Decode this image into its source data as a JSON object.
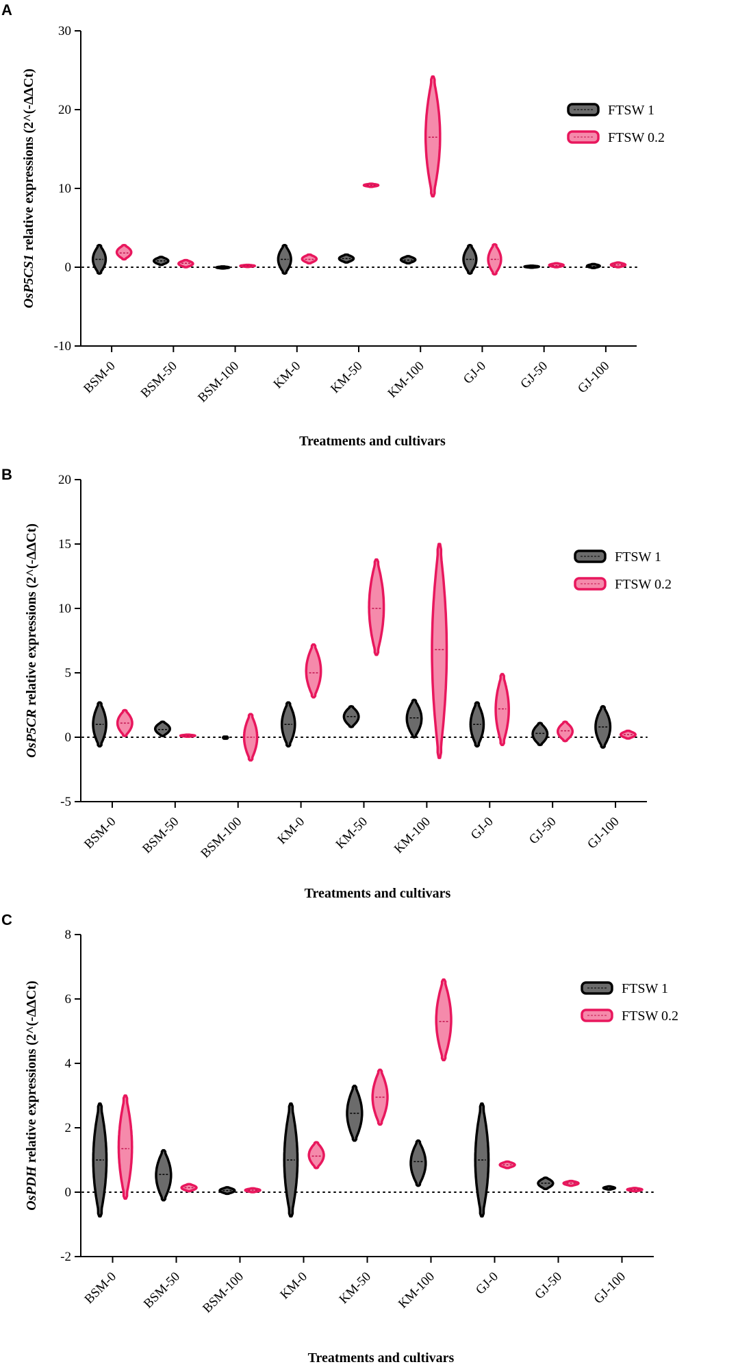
{
  "colors": {
    "series1_fill": "#6b6b6b",
    "series1_stroke": "#000000",
    "series2_fill": "#f58aab",
    "series2_stroke": "#e8175d"
  },
  "chart_data": [
    {
      "type": "violin",
      "panel": "A",
      "title": "",
      "ylabel_gene": "OsP5CS1",
      "ylabel_rest": " relative expressions (2^(-ΔΔCt)",
      "xlabel": "Treatments and cultivars",
      "ylim": [
        -10,
        30
      ],
      "yticks": [
        "30",
        "20",
        "10",
        "0",
        "-10"
      ],
      "ytick_values": [
        30,
        20,
        10,
        0,
        -10
      ],
      "categories": [
        "BSM-0",
        "BSM-50",
        "BSM-100",
        "KM-0",
        "KM-50",
        "KM-100",
        "GJ-0",
        "GJ-50",
        "GJ-100"
      ],
      "series": [
        {
          "name": "FTSW 1",
          "violins": [
            {
              "min": -0.8,
              "max": 2.8,
              "median": 1.0,
              "w": 0.8
            },
            {
              "min": 0.3,
              "max": 1.3,
              "median": 0.8,
              "w": 0.9
            },
            {
              "min": 0.0,
              "max": 0.1,
              "median": 0.05,
              "w": 0.8
            },
            {
              "min": -0.8,
              "max": 2.8,
              "median": 1.0,
              "w": 0.8
            },
            {
              "min": 0.6,
              "max": 1.6,
              "median": 1.1,
              "w": 0.9
            },
            {
              "min": 0.5,
              "max": 1.4,
              "median": 0.9,
              "w": 0.9
            },
            {
              "min": -0.8,
              "max": 2.8,
              "median": 1.0,
              "w": 0.8
            },
            {
              "min": 0.0,
              "max": 0.2,
              "median": 0.1,
              "w": 0.9
            },
            {
              "min": -0.1,
              "max": 0.4,
              "median": 0.1,
              "w": 0.8
            }
          ]
        },
        {
          "name": "FTSW 0.2",
          "violins": [
            {
              "min": 1.0,
              "max": 2.8,
              "median": 1.8,
              "w": 0.9
            },
            {
              "min": 0.0,
              "max": 0.9,
              "median": 0.5,
              "w": 0.9
            },
            {
              "min": 0.1,
              "max": 0.3,
              "median": 0.2,
              "w": 0.9
            },
            {
              "min": 0.5,
              "max": 1.6,
              "median": 1.0,
              "w": 0.9
            },
            {
              "min": 10.2,
              "max": 10.6,
              "median": 10.4,
              "w": 0.9
            },
            {
              "min": 9.0,
              "max": 24.2,
              "median": 16.5,
              "w": 0.9
            },
            {
              "min": -0.9,
              "max": 2.9,
              "median": 1.0,
              "w": 0.8
            },
            {
              "min": 0.0,
              "max": 0.5,
              "median": 0.2,
              "w": 0.9
            },
            {
              "min": 0.0,
              "max": 0.6,
              "median": 0.3,
              "w": 0.9
            }
          ]
        }
      ],
      "legend": [
        "FTSW 1",
        "FTSW 0.2"
      ]
    },
    {
      "type": "violin",
      "panel": "B",
      "title": "",
      "ylabel_gene": "OsP5CR",
      "ylabel_rest": " relative expressions (2^(-ΔΔCt)",
      "xlabel": "Treatments and cultivars",
      "ylim": [
        -5,
        20
      ],
      "yticks": [
        "20",
        "15",
        "10",
        "5",
        "0",
        "-5"
      ],
      "ytick_values": [
        20,
        15,
        10,
        5,
        0,
        -5
      ],
      "categories": [
        "BSM-0",
        "BSM-50",
        "BSM-100",
        "KM-0",
        "KM-50",
        "KM-100",
        "GJ-0",
        "GJ-50",
        "GJ-100"
      ],
      "series": [
        {
          "name": "FTSW 1",
          "violins": [
            {
              "min": -0.7,
              "max": 2.7,
              "median": 1.0,
              "w": 0.8
            },
            {
              "min": 0.1,
              "max": 1.2,
              "median": 0.6,
              "w": 0.9
            },
            {
              "min": -0.05,
              "max": 0.05,
              "median": 0.0,
              "w": 0.3
            },
            {
              "min": -0.7,
              "max": 2.7,
              "median": 1.0,
              "w": 0.8
            },
            {
              "min": 0.8,
              "max": 2.4,
              "median": 1.6,
              "w": 0.9
            },
            {
              "min": 0.0,
              "max": 2.9,
              "median": 1.5,
              "w": 0.9
            },
            {
              "min": -0.7,
              "max": 2.7,
              "median": 1.0,
              "w": 0.8
            },
            {
              "min": -0.6,
              "max": 1.1,
              "median": 0.3,
              "w": 0.9
            },
            {
              "min": -0.8,
              "max": 2.4,
              "median": 0.8,
              "w": 0.9
            }
          ]
        },
        {
          "name": "FTSW 0.2",
          "violins": [
            {
              "min": 0.1,
              "max": 2.1,
              "median": 1.1,
              "w": 0.9
            },
            {
              "min": 0.05,
              "max": 0.2,
              "median": 0.1,
              "w": 0.9
            },
            {
              "min": -1.8,
              "max": 1.8,
              "median": 0.0,
              "w": 0.8
            },
            {
              "min": 3.1,
              "max": 7.2,
              "median": 5.0,
              "w": 0.9
            },
            {
              "min": 6.4,
              "max": 13.8,
              "median": 10.0,
              "w": 0.9
            },
            {
              "min": -1.6,
              "max": 15.0,
              "median": 6.8,
              "w": 0.9
            },
            {
              "min": -0.6,
              "max": 4.9,
              "median": 2.2,
              "w": 0.8
            },
            {
              "min": -0.3,
              "max": 1.2,
              "median": 0.5,
              "w": 0.9
            },
            {
              "min": -0.1,
              "max": 0.5,
              "median": 0.2,
              "w": 0.9
            }
          ]
        }
      ],
      "legend": [
        "FTSW 1",
        "FTSW 0.2"
      ]
    },
    {
      "type": "violin",
      "panel": "C",
      "title": "",
      "ylabel_gene": "OsPDH",
      "ylabel_rest": " relative expressions (2^(-ΔΔCt)",
      "xlabel": "Treatments and cultivars",
      "ylim": [
        -2,
        8
      ],
      "yticks": [
        "8",
        "6",
        "4",
        "2",
        "0",
        "-2"
      ],
      "ytick_values": [
        8,
        6,
        4,
        2,
        0,
        -2
      ],
      "categories": [
        "BSM-0",
        "BSM-50",
        "BSM-100",
        "KM-0",
        "KM-50",
        "KM-100",
        "GJ-0",
        "GJ-50",
        "GJ-100"
      ],
      "series": [
        {
          "name": "FTSW 1",
          "violins": [
            {
              "min": -0.75,
              "max": 2.75,
              "median": 1.0,
              "w": 0.8
            },
            {
              "min": -0.25,
              "max": 1.3,
              "median": 0.55,
              "w": 0.9
            },
            {
              "min": -0.05,
              "max": 0.15,
              "median": 0.05,
              "w": 0.9
            },
            {
              "min": -0.75,
              "max": 2.75,
              "median": 1.0,
              "w": 0.8
            },
            {
              "min": 1.6,
              "max": 3.3,
              "median": 2.45,
              "w": 0.9
            },
            {
              "min": 0.2,
              "max": 1.6,
              "median": 0.95,
              "w": 0.9
            },
            {
              "min": -0.75,
              "max": 2.75,
              "median": 1.0,
              "w": 0.8
            },
            {
              "min": 0.1,
              "max": 0.45,
              "median": 0.28,
              "w": 0.9
            },
            {
              "min": 0.08,
              "max": 0.18,
              "median": 0.12,
              "w": 0.7
            }
          ]
        },
        {
          "name": "FTSW 0.2",
          "violins": [
            {
              "min": -0.2,
              "max": 3.0,
              "median": 1.35,
              "w": 0.8
            },
            {
              "min": 0.03,
              "max": 0.25,
              "median": 0.14,
              "w": 0.9
            },
            {
              "min": 0.0,
              "max": 0.12,
              "median": 0.06,
              "w": 0.9
            },
            {
              "min": 0.75,
              "max": 1.55,
              "median": 1.12,
              "w": 0.9
            },
            {
              "min": 2.1,
              "max": 3.8,
              "median": 2.95,
              "w": 0.9
            },
            {
              "min": 4.1,
              "max": 6.6,
              "median": 5.3,
              "w": 0.9
            },
            {
              "min": 0.75,
              "max": 0.95,
              "median": 0.85,
              "w": 0.9
            },
            {
              "min": 0.2,
              "max": 0.35,
              "median": 0.28,
              "w": 0.9
            },
            {
              "min": 0.03,
              "max": 0.13,
              "median": 0.08,
              "w": 0.9
            }
          ]
        }
      ],
      "legend": [
        "FTSW 1",
        "FTSW 0.2"
      ]
    }
  ]
}
